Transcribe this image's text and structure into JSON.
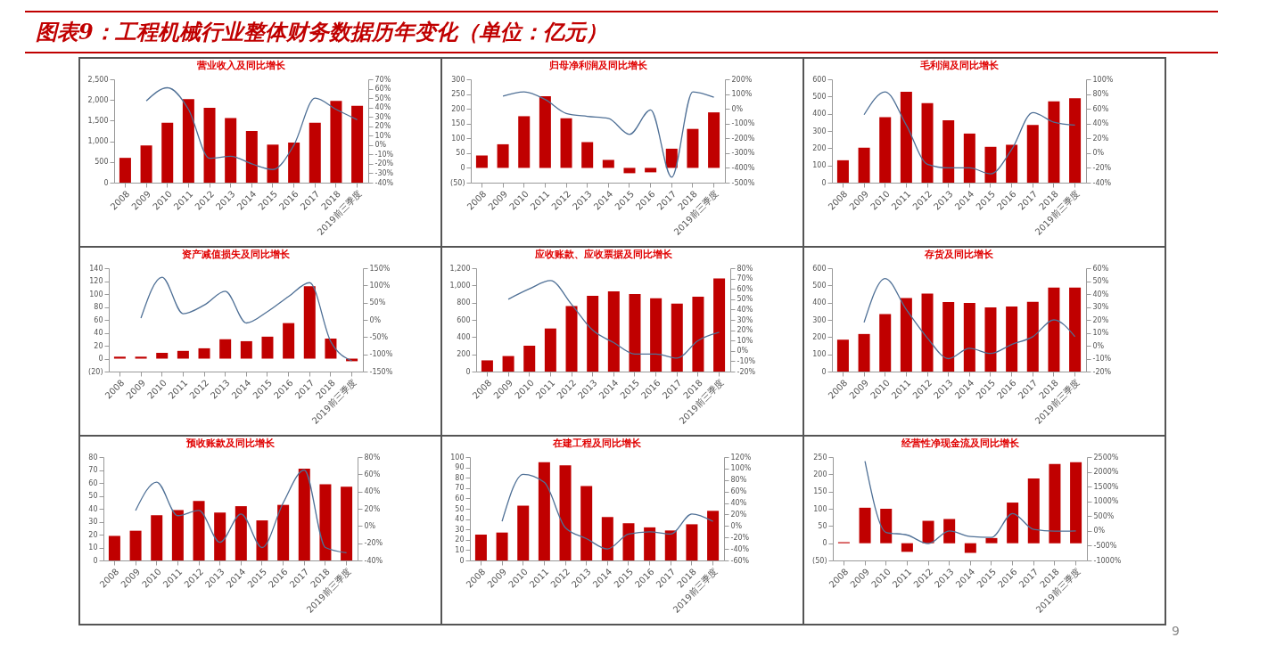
{
  "chart_data": [
    {
      "type": "bar",
      "title": "营业收入及同比增长",
      "annotations": [
        "图表9：工程机械行业整体财务数据历年变化（单位：亿元）",
        "9"
      ],
      "categories": [
        "2008",
        "2009",
        "2010",
        "2011",
        "2012",
        "2013",
        "2014",
        "2015",
        "2016",
        "2017",
        "2018",
        "2019前三季度"
      ],
      "ylim": [
        0,
        2500
      ],
      "yticks": [
        0,
        500,
        {
          "value": 1000,
          "label": "1,000"
        },
        {
          "value": 1500,
          "label": "1,500"
        },
        {
          "value": 2000,
          "label": "2,000"
        },
        {
          "value": 2500,
          "label": "2,500"
        }
      ],
      "y2lim": [
        -40,
        70
      ],
      "y2ticks": [
        {
          "value": -40,
          "label": "-40%"
        },
        {
          "value": -30,
          "label": "-30%"
        },
        {
          "value": -20,
          "label": "-20%"
        },
        {
          "value": -10,
          "label": "-10%"
        },
        {
          "value": 0,
          "label": "0%"
        },
        {
          "value": 10,
          "label": "10%"
        },
        {
          "value": 20,
          "label": "20%"
        },
        {
          "value": 30,
          "label": "30%"
        },
        {
          "value": 40,
          "label": "40%"
        },
        {
          "value": 50,
          "label": "50%"
        },
        {
          "value": 60,
          "label": "60%"
        },
        {
          "value": 70,
          "label": "70%"
        }
      ],
      "series": [
        {
          "color": "#c00000",
          "values": [
            600,
            900,
            1450,
            2020,
            1810,
            1560,
            1250,
            920,
            970,
            1450,
            1980,
            1860
          ]
        },
        {
          "type": "line",
          "axis": "y2",
          "color": "#4f7096",
          "values": [
            null,
            47,
            61,
            38,
            -14,
            -12,
            -20,
            -26,
            0,
            50,
            38,
            27
          ]
        }
      ]
    },
    {
      "type": "bar",
      "title": "归母净利润及同比增长",
      "categories": [
        "2008",
        "2009",
        "2010",
        "2011",
        "2012",
        "2013",
        "2014",
        "2015",
        "2016",
        "2017",
        "2018",
        "2019前三季度"
      ],
      "ylim": [
        -50,
        300
      ],
      "yticks": [
        {
          "value": -50,
          "label": "(50)"
        },
        0,
        50,
        100,
        150,
        200,
        250,
        300
      ],
      "y2lim": [
        -500,
        200
      ],
      "y2ticks": [
        {
          "value": -500,
          "label": "-500%"
        },
        {
          "value": -400,
          "label": "-400%"
        },
        {
          "value": -300,
          "label": "-300%"
        },
        {
          "value": -200,
          "label": "-200%"
        },
        {
          "value": -100,
          "label": "-100%"
        },
        {
          "value": 0,
          "label": "0%"
        },
        {
          "value": 100,
          "label": "100%"
        },
        {
          "value": 200,
          "label": "200%"
        }
      ],
      "series": [
        {
          "color": "#c00000",
          "values": [
            42,
            80,
            175,
            243,
            168,
            87,
            27,
            -18,
            -15,
            65,
            132,
            188
          ]
        },
        {
          "type": "line",
          "axis": "y2",
          "color": "#4f7096",
          "values": [
            null,
            86,
            115,
            63,
            -31,
            -51,
            -65,
            -173,
            -8,
            -463,
            115,
            78
          ]
        }
      ]
    },
    {
      "type": "bar",
      "title": "毛利润及同比增长",
      "categories": [
        "2008",
        "2009",
        "2010",
        "2011",
        "2012",
        "2013",
        "2014",
        "2015",
        "2016",
        "2017",
        "2018",
        "2019前三季度"
      ],
      "ylim": [
        0,
        600
      ],
      "yticks": [
        0,
        100,
        200,
        300,
        400,
        500,
        600
      ],
      "y2lim": [
        -40,
        100
      ],
      "y2ticks": [
        {
          "value": -40,
          "label": "-40%"
        },
        {
          "value": -20,
          "label": "-20%"
        },
        {
          "value": 0,
          "label": "0%"
        },
        {
          "value": 20,
          "label": "20%"
        },
        {
          "value": 40,
          "label": "40%"
        },
        {
          "value": 60,
          "label": "60%"
        },
        {
          "value": 80,
          "label": "80%"
        },
        {
          "value": 100,
          "label": "100%"
        }
      ],
      "series": [
        {
          "color": "#c00000",
          "values": [
            130,
            203,
            380,
            528,
            462,
            362,
            285,
            208,
            220,
            335,
            472,
            490
          ]
        },
        {
          "type": "line",
          "axis": "y2",
          "color": "#4f7096",
          "values": [
            null,
            52,
            83,
            38,
            -15,
            -20,
            -20,
            -28,
            5,
            55,
            42,
            38
          ]
        }
      ]
    },
    {
      "type": "bar",
      "title": "资产减值损失及同比增长",
      "categories": [
        "2008",
        "2009",
        "2010",
        "2011",
        "2012",
        "2013",
        "2014",
        "2015",
        "2016",
        "2017",
        "2018",
        "2019前三季度"
      ],
      "ylim": [
        -20,
        140
      ],
      "yticks": [
        {
          "value": -20,
          "label": "(20)"
        },
        0,
        20,
        40,
        60,
        80,
        100,
        120,
        140
      ],
      "y2lim": [
        -150,
        150
      ],
      "y2ticks": [
        {
          "value": -150,
          "label": "-150%"
        },
        {
          "value": -100,
          "label": "-100%"
        },
        {
          "value": -50,
          "label": "-50%"
        },
        {
          "value": 0,
          "label": "0%"
        },
        {
          "value": 50,
          "label": "50%"
        },
        {
          "value": 100,
          "label": "100%"
        },
        {
          "value": 150,
          "label": "150%"
        }
      ],
      "series": [
        {
          "color": "#c00000",
          "values": [
            3,
            3,
            9,
            12,
            16,
            30,
            27,
            34,
            55,
            112,
            31,
            -4
          ]
        },
        {
          "type": "line",
          "axis": "y2",
          "color": "#4f7096",
          "values": [
            null,
            5,
            124,
            18,
            43,
            83,
            -9,
            24,
            68,
            108,
            -63,
            -119
          ]
        }
      ]
    },
    {
      "type": "bar",
      "title": "应收账款、应收票据及同比增长",
      "categories": [
        "2008",
        "2009",
        "2010",
        "2011",
        "2012",
        "2013",
        "2014",
        "2015",
        "2016",
        "2017",
        "2018",
        "2019前三季度"
      ],
      "ylim": [
        0,
        1200
      ],
      "yticks": [
        0,
        200,
        400,
        600,
        800,
        {
          "value": 1000,
          "label": "1,000"
        },
        {
          "value": 1200,
          "label": "1,200"
        }
      ],
      "y2lim": [
        -20,
        80
      ],
      "y2ticks": [
        {
          "value": -20,
          "label": "-20%"
        },
        {
          "value": -10,
          "label": "-10%"
        },
        {
          "value": 0,
          "label": "0%"
        },
        {
          "value": 10,
          "label": "10%"
        },
        {
          "value": 20,
          "label": "20%"
        },
        {
          "value": 30,
          "label": "30%"
        },
        {
          "value": 40,
          "label": "40%"
        },
        {
          "value": 50,
          "label": "50%"
        },
        {
          "value": 60,
          "label": "60%"
        },
        {
          "value": 70,
          "label": "70%"
        },
        {
          "value": 80,
          "label": "80%"
        }
      ],
      "series": [
        {
          "color": "#c00000",
          "values": [
            130,
            180,
            300,
            500,
            760,
            880,
            930,
            900,
            850,
            790,
            870,
            1080
          ]
        },
        {
          "type": "line",
          "axis": "y2",
          "color": "#4f7096",
          "values": [
            null,
            50,
            60,
            68,
            45,
            20,
            8,
            -3,
            -3,
            -7,
            10,
            18
          ]
        }
      ]
    },
    {
      "type": "bar",
      "title": "存货及同比增长",
      "categories": [
        "2008",
        "2009",
        "2010",
        "2011",
        "2012",
        "2013",
        "2014",
        "2015",
        "2016",
        "2017",
        "2018",
        "2019前三季度"
      ],
      "ylim": [
        0,
        600
      ],
      "yticks": [
        0,
        100,
        200,
        300,
        400,
        500,
        600
      ],
      "y2lim": [
        -20,
        60
      ],
      "y2ticks": [
        {
          "value": -20,
          "label": "-20%"
        },
        {
          "value": -10,
          "label": "-10%"
        },
        {
          "value": 0,
          "label": "0%"
        },
        {
          "value": 10,
          "label": "10%"
        },
        {
          "value": 20,
          "label": "20%"
        },
        {
          "value": 30,
          "label": "30%"
        },
        {
          "value": 40,
          "label": "40%"
        },
        {
          "value": 50,
          "label": "50%"
        },
        {
          "value": 60,
          "label": "60%"
        }
      ],
      "series": [
        {
          "color": "#c00000",
          "values": [
            185,
            218,
            333,
            427,
            453,
            403,
            398,
            372,
            378,
            405,
            487,
            487
          ]
        },
        {
          "type": "line",
          "axis": "y2",
          "color": "#4f7096",
          "values": [
            null,
            18,
            52,
            28,
            6,
            -10,
            -2,
            -6,
            1,
            7,
            20,
            7
          ]
        }
      ]
    },
    {
      "type": "bar",
      "title": "预收账款及同比增长",
      "categories": [
        "2008",
        "2009",
        "2010",
        "2011",
        "2012",
        "2013",
        "2014",
        "2015",
        "2016",
        "2017",
        "2018",
        "2019前三季度"
      ],
      "ylim": [
        0,
        80
      ],
      "yticks": [
        0,
        10,
        20,
        30,
        40,
        50,
        60,
        70,
        80
      ],
      "y2lim": [
        -40,
        80
      ],
      "y2ticks": [
        {
          "value": -40,
          "label": "-40%"
        },
        {
          "value": -20,
          "label": "-20%"
        },
        {
          "value": 0,
          "label": "0%"
        },
        {
          "value": 20,
          "label": "20%"
        },
        {
          "value": 40,
          "label": "40%"
        },
        {
          "value": 60,
          "label": "60%"
        },
        {
          "value": 80,
          "label": "80%"
        }
      ],
      "series": [
        {
          "color": "#c00000",
          "values": [
            19,
            23,
            35,
            39,
            46,
            37,
            42,
            31,
            43,
            71,
            59,
            57
          ]
        },
        {
          "type": "line",
          "axis": "y2",
          "color": "#4f7096",
          "values": [
            null,
            18,
            51,
            12,
            18,
            -19,
            14,
            -25,
            27,
            65,
            -25,
            -31
          ]
        }
      ]
    },
    {
      "type": "bar",
      "title": "在建工程及同比增长",
      "categories": [
        "2008",
        "2009",
        "2010",
        "2011",
        "2012",
        "2013",
        "2014",
        "2015",
        "2016",
        "2017",
        "2018",
        "2019前三季度"
      ],
      "ylim": [
        0,
        100
      ],
      "yticks": [
        0,
        10,
        20,
        30,
        40,
        50,
        60,
        70,
        80,
        90,
        100
      ],
      "y2lim": [
        -60,
        120
      ],
      "y2ticks": [
        {
          "value": -60,
          "label": "-60%"
        },
        {
          "value": -40,
          "label": "-40%"
        },
        {
          "value": -20,
          "label": "-20%"
        },
        {
          "value": 0,
          "label": "0%"
        },
        {
          "value": 20,
          "label": "20%"
        },
        {
          "value": 40,
          "label": "40%"
        },
        {
          "value": 60,
          "label": "60%"
        },
        {
          "value": 80,
          "label": "80%"
        },
        {
          "value": 100,
          "label": "100%"
        },
        {
          "value": 120,
          "label": "120%"
        }
      ],
      "series": [
        {
          "color": "#c00000",
          "values": [
            25,
            27,
            53,
            95,
            92,
            72,
            42,
            36,
            32,
            29,
            35,
            48
          ]
        },
        {
          "type": "line",
          "axis": "y2",
          "color": "#4f7096",
          "values": [
            null,
            8,
            90,
            76,
            -3,
            -22,
            -40,
            -14,
            -10,
            -14,
            21,
            8
          ]
        }
      ]
    },
    {
      "type": "bar",
      "title": "经营性净现金流及同比增长",
      "categories": [
        "2008",
        "2009",
        "2010",
        "2011",
        "2012",
        "2013",
        "2014",
        "2015",
        "2016",
        "2017",
        "2018",
        "2019前三季度"
      ],
      "ylim": [
        -50,
        250
      ],
      "yticks": [
        {
          "value": -50,
          "label": "(50)"
        },
        0,
        50,
        100,
        150,
        200,
        250
      ],
      "y2lim": [
        -1000,
        2500
      ],
      "y2ticks": [
        {
          "value": -1000,
          "label": "-1000%"
        },
        {
          "value": -500,
          "label": "-500%"
        },
        {
          "value": 0,
          "label": "0%"
        },
        {
          "value": 500,
          "label": "500%"
        },
        {
          "value": 1000,
          "label": "1000%"
        },
        {
          "value": 1500,
          "label": "1500%"
        },
        {
          "value": 2000,
          "label": "2000%"
        },
        {
          "value": 2500,
          "label": "2500%"
        }
      ],
      "series": [
        {
          "color": "#c00000",
          "values": [
            3,
            103,
            100,
            -25,
            65,
            70,
            -28,
            15,
            118,
            188,
            230,
            235
          ]
        },
        {
          "type": "line",
          "axis": "y2",
          "color": "#4f7096",
          "values": [
            null,
            2360,
            -50,
            -140,
            -430,
            0,
            -190,
            -220,
            590,
            50,
            -10,
            0
          ]
        }
      ]
    }
  ]
}
